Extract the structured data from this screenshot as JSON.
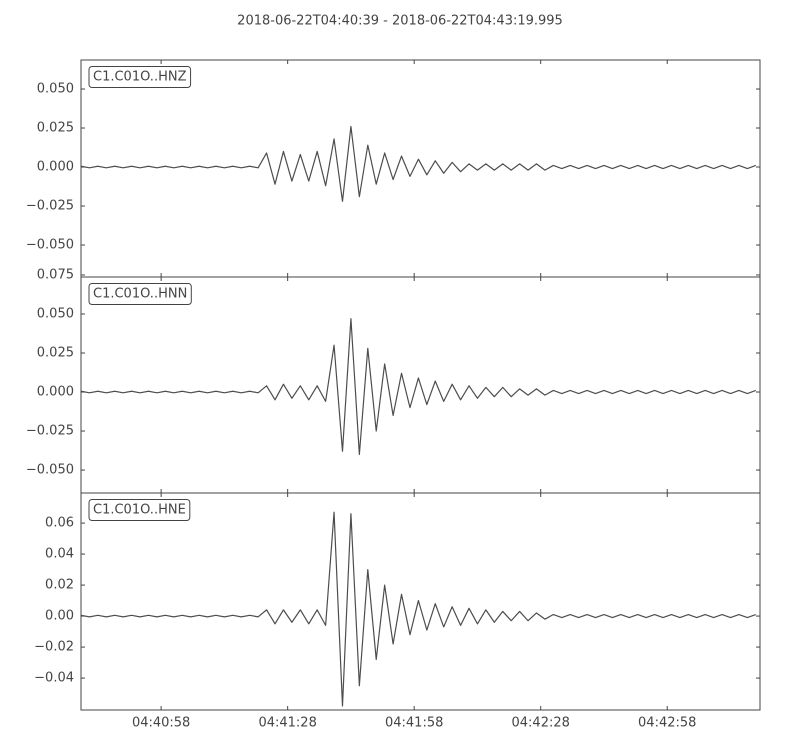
{
  "chart_data": {
    "type": "line",
    "title": "2018-06-22T04:40:39  -  2018-06-22T04:43:19.995",
    "x": [
      "04:40:39",
      "04:40:41",
      "04:40:43",
      "04:40:45",
      "04:40:47",
      "04:40:49",
      "04:40:51",
      "04:40:53",
      "04:40:55",
      "04:40:57",
      "04:40:59",
      "04:41:01",
      "04:41:03",
      "04:41:05",
      "04:41:07",
      "04:41:09",
      "04:41:11",
      "04:41:13",
      "04:41:15",
      "04:41:17",
      "04:41:19",
      "04:41:21",
      "04:41:23",
      "04:41:25",
      "04:41:27",
      "04:41:29",
      "04:41:31",
      "04:41:33",
      "04:41:35",
      "04:41:37",
      "04:41:39",
      "04:41:41",
      "04:41:43",
      "04:41:45",
      "04:41:47",
      "04:41:49",
      "04:41:51",
      "04:41:53",
      "04:41:55",
      "04:41:57",
      "04:41:59",
      "04:42:01",
      "04:42:03",
      "04:42:05",
      "04:42:07",
      "04:42:09",
      "04:42:11",
      "04:42:13",
      "04:42:15",
      "04:42:17",
      "04:42:19",
      "04:42:21",
      "04:42:23",
      "04:42:25",
      "04:42:27",
      "04:42:29",
      "04:42:31",
      "04:42:33",
      "04:42:35",
      "04:42:37",
      "04:42:39",
      "04:42:41",
      "04:42:43",
      "04:42:45",
      "04:42:47",
      "04:42:49",
      "04:42:51",
      "04:42:53",
      "04:42:55",
      "04:42:57",
      "04:42:59",
      "04:43:01",
      "04:43:03",
      "04:43:05",
      "04:43:07",
      "04:43:09",
      "04:43:11",
      "04:43:13",
      "04:43:15",
      "04:43:17",
      "04:43:19"
    ],
    "xlim": [
      "04:40:39",
      "04:43:19.995"
    ],
    "xticks": [
      "04:40:58",
      "04:41:28",
      "04:41:58",
      "04:42:28",
      "04:42:58"
    ],
    "series": [
      {
        "name": "C1.C01O..HNZ",
        "color": "#4d4d4d",
        "ylim": [
          -0.0705,
          0.0686
        ],
        "yticks": [
          {
            "value": -0.05,
            "label": "−0.050"
          },
          {
            "value": -0.025,
            "label": "−0.025"
          },
          {
            "value": 0,
            "label": "0.000"
          },
          {
            "value": 0.025,
            "label": "0.025"
          },
          {
            "value": 0.05,
            "label": "0.050"
          }
        ],
        "values": [
          0.0005,
          -0.0005,
          0.0005,
          -0.0005,
          0.0005,
          -0.0005,
          0.0005,
          -0.0005,
          0.0005,
          -0.0005,
          0.0005,
          -0.0005,
          0.0005,
          -0.0005,
          0.0005,
          -0.0005,
          0.0005,
          -0.0005,
          0.0005,
          -0.0005,
          0.0005,
          -0.0005,
          0.009,
          -0.011,
          0.01,
          -0.009,
          0.008,
          -0.009,
          0.01,
          -0.012,
          0.018,
          -0.022,
          0.026,
          -0.019,
          0.014,
          -0.011,
          0.009,
          -0.008,
          0.007,
          -0.006,
          0.005,
          -0.005,
          0.004,
          -0.004,
          0.003,
          -0.003,
          0.002,
          -0.002,
          0.002,
          -0.002,
          0.002,
          -0.002,
          0.002,
          -0.002,
          0.002,
          -0.002,
          0.001,
          -0.001,
          0.001,
          -0.001,
          0.001,
          -0.001,
          0.001,
          -0.001,
          0.001,
          -0.001,
          0.001,
          -0.001,
          0.001,
          -0.001,
          0.001,
          -0.001,
          0.001,
          -0.001,
          0.001,
          -0.001,
          0.001,
          -0.001,
          0.001,
          -0.001,
          0.001
        ]
      },
      {
        "name": "C1.C01O..HNN",
        "color": "#4d4d4d",
        "ylim": [
          -0.0647,
          0.0737
        ],
        "yticks": [
          {
            "value": -0.05,
            "label": "−0.050"
          },
          {
            "value": -0.025,
            "label": "−0.025"
          },
          {
            "value": 0,
            "label": "0.000"
          },
          {
            "value": 0.025,
            "label": "0.025"
          },
          {
            "value": 0.05,
            "label": "0.050"
          },
          {
            "value": 0.075,
            "label": "0.075"
          }
        ],
        "values": [
          0.0005,
          -0.0005,
          0.0005,
          -0.0005,
          0.0005,
          -0.0005,
          0.0005,
          -0.0005,
          0.0005,
          -0.0005,
          0.0005,
          -0.0005,
          0.0005,
          -0.0005,
          0.0005,
          -0.0005,
          0.0005,
          -0.0005,
          0.0005,
          -0.0005,
          0.0005,
          -0.0005,
          0.004,
          -0.005,
          0.005,
          -0.004,
          0.004,
          -0.005,
          0.004,
          -0.006,
          0.03,
          -0.038,
          0.047,
          -0.04,
          0.028,
          -0.025,
          0.018,
          -0.015,
          0.012,
          -0.01,
          0.009,
          -0.008,
          0.007,
          -0.006,
          0.005,
          -0.005,
          0.004,
          -0.004,
          0.003,
          -0.003,
          0.003,
          -0.003,
          0.002,
          -0.002,
          0.002,
          -0.002,
          0.001,
          -0.001,
          0.001,
          -0.001,
          0.001,
          -0.001,
          0.001,
          -0.001,
          0.001,
          -0.001,
          0.001,
          -0.001,
          0.001,
          -0.001,
          0.001,
          -0.001,
          0.001,
          -0.001,
          0.001,
          -0.001,
          0.001,
          -0.001,
          0.001,
          -0.001,
          0.001
        ]
      },
      {
        "name": "C1.C01O..HNE",
        "color": "#4d4d4d",
        "ylim": [
          -0.0606,
          0.0794
        ],
        "yticks": [
          {
            "value": -0.04,
            "label": "−0.04"
          },
          {
            "value": -0.02,
            "label": "−0.02"
          },
          {
            "value": 0,
            "label": "0.00"
          },
          {
            "value": 0.02,
            "label": "0.02"
          },
          {
            "value": 0.04,
            "label": "0.04"
          },
          {
            "value": 0.06,
            "label": "0.06"
          }
        ],
        "values": [
          0.0005,
          -0.0005,
          0.0005,
          -0.0005,
          0.0005,
          -0.0005,
          0.0005,
          -0.0005,
          0.0005,
          -0.0005,
          0.0005,
          -0.0005,
          0.0005,
          -0.0005,
          0.0005,
          -0.0005,
          0.0005,
          -0.0005,
          0.0005,
          -0.0005,
          0.0005,
          -0.0005,
          0.004,
          -0.005,
          0.004,
          -0.004,
          0.004,
          -0.005,
          0.004,
          -0.006,
          0.067,
          -0.058,
          0.066,
          -0.045,
          0.03,
          -0.028,
          0.02,
          -0.018,
          0.014,
          -0.012,
          0.01,
          -0.009,
          0.008,
          -0.007,
          0.006,
          -0.006,
          0.005,
          -0.005,
          0.004,
          -0.004,
          0.003,
          -0.003,
          0.003,
          -0.003,
          0.002,
          -0.002,
          0.001,
          -0.001,
          0.001,
          -0.001,
          0.001,
          -0.001,
          0.001,
          -0.001,
          0.001,
          -0.001,
          0.001,
          -0.001,
          0.001,
          -0.001,
          0.001,
          -0.001,
          0.001,
          -0.001,
          0.001,
          -0.001,
          0.001,
          -0.001,
          0.001,
          -0.001,
          0.001
        ]
      }
    ]
  }
}
